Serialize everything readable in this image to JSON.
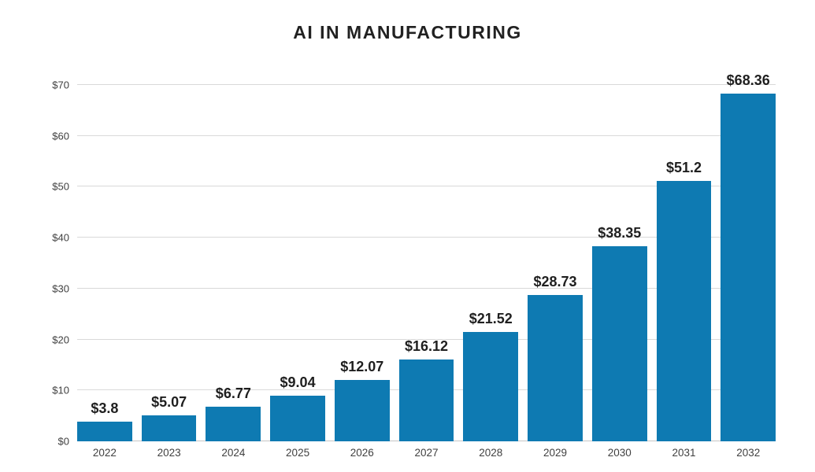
{
  "page": {
    "background": "#ffffff"
  },
  "chart_data": {
    "type": "bar",
    "title": "AI IN MANUFACTURING",
    "xlabel": "",
    "ylabel": "",
    "categories": [
      "2022",
      "2023",
      "2024",
      "2025",
      "2026",
      "2027",
      "2028",
      "2029",
      "2030",
      "2031",
      "2032"
    ],
    "values": [
      3.8,
      5.07,
      6.77,
      9.04,
      12.07,
      16.12,
      21.52,
      28.73,
      38.35,
      51.2,
      68.36
    ],
    "value_labels": [
      "$3.8",
      "$5.07",
      "$6.77",
      "$9.04",
      "$12.07",
      "$16.12",
      "$21.52",
      "$28.73",
      "$38.35",
      "$51.2",
      "$68.36"
    ],
    "ylim": [
      0,
      70
    ],
    "ytick_step": 10,
    "ytick_labels": [
      "$0",
      "$10",
      "$20",
      "$30",
      "$40",
      "$50",
      "$60",
      "$70"
    ],
    "grid": "horizontal",
    "legend": "none",
    "colors": {
      "bar": "#0e7ab2",
      "gridline": "#d9d9d9",
      "axisline": "#c4c4c4",
      "title_text": "#212121",
      "value_label_text": "#1f1f1f",
      "tick_text": "#404040"
    }
  }
}
